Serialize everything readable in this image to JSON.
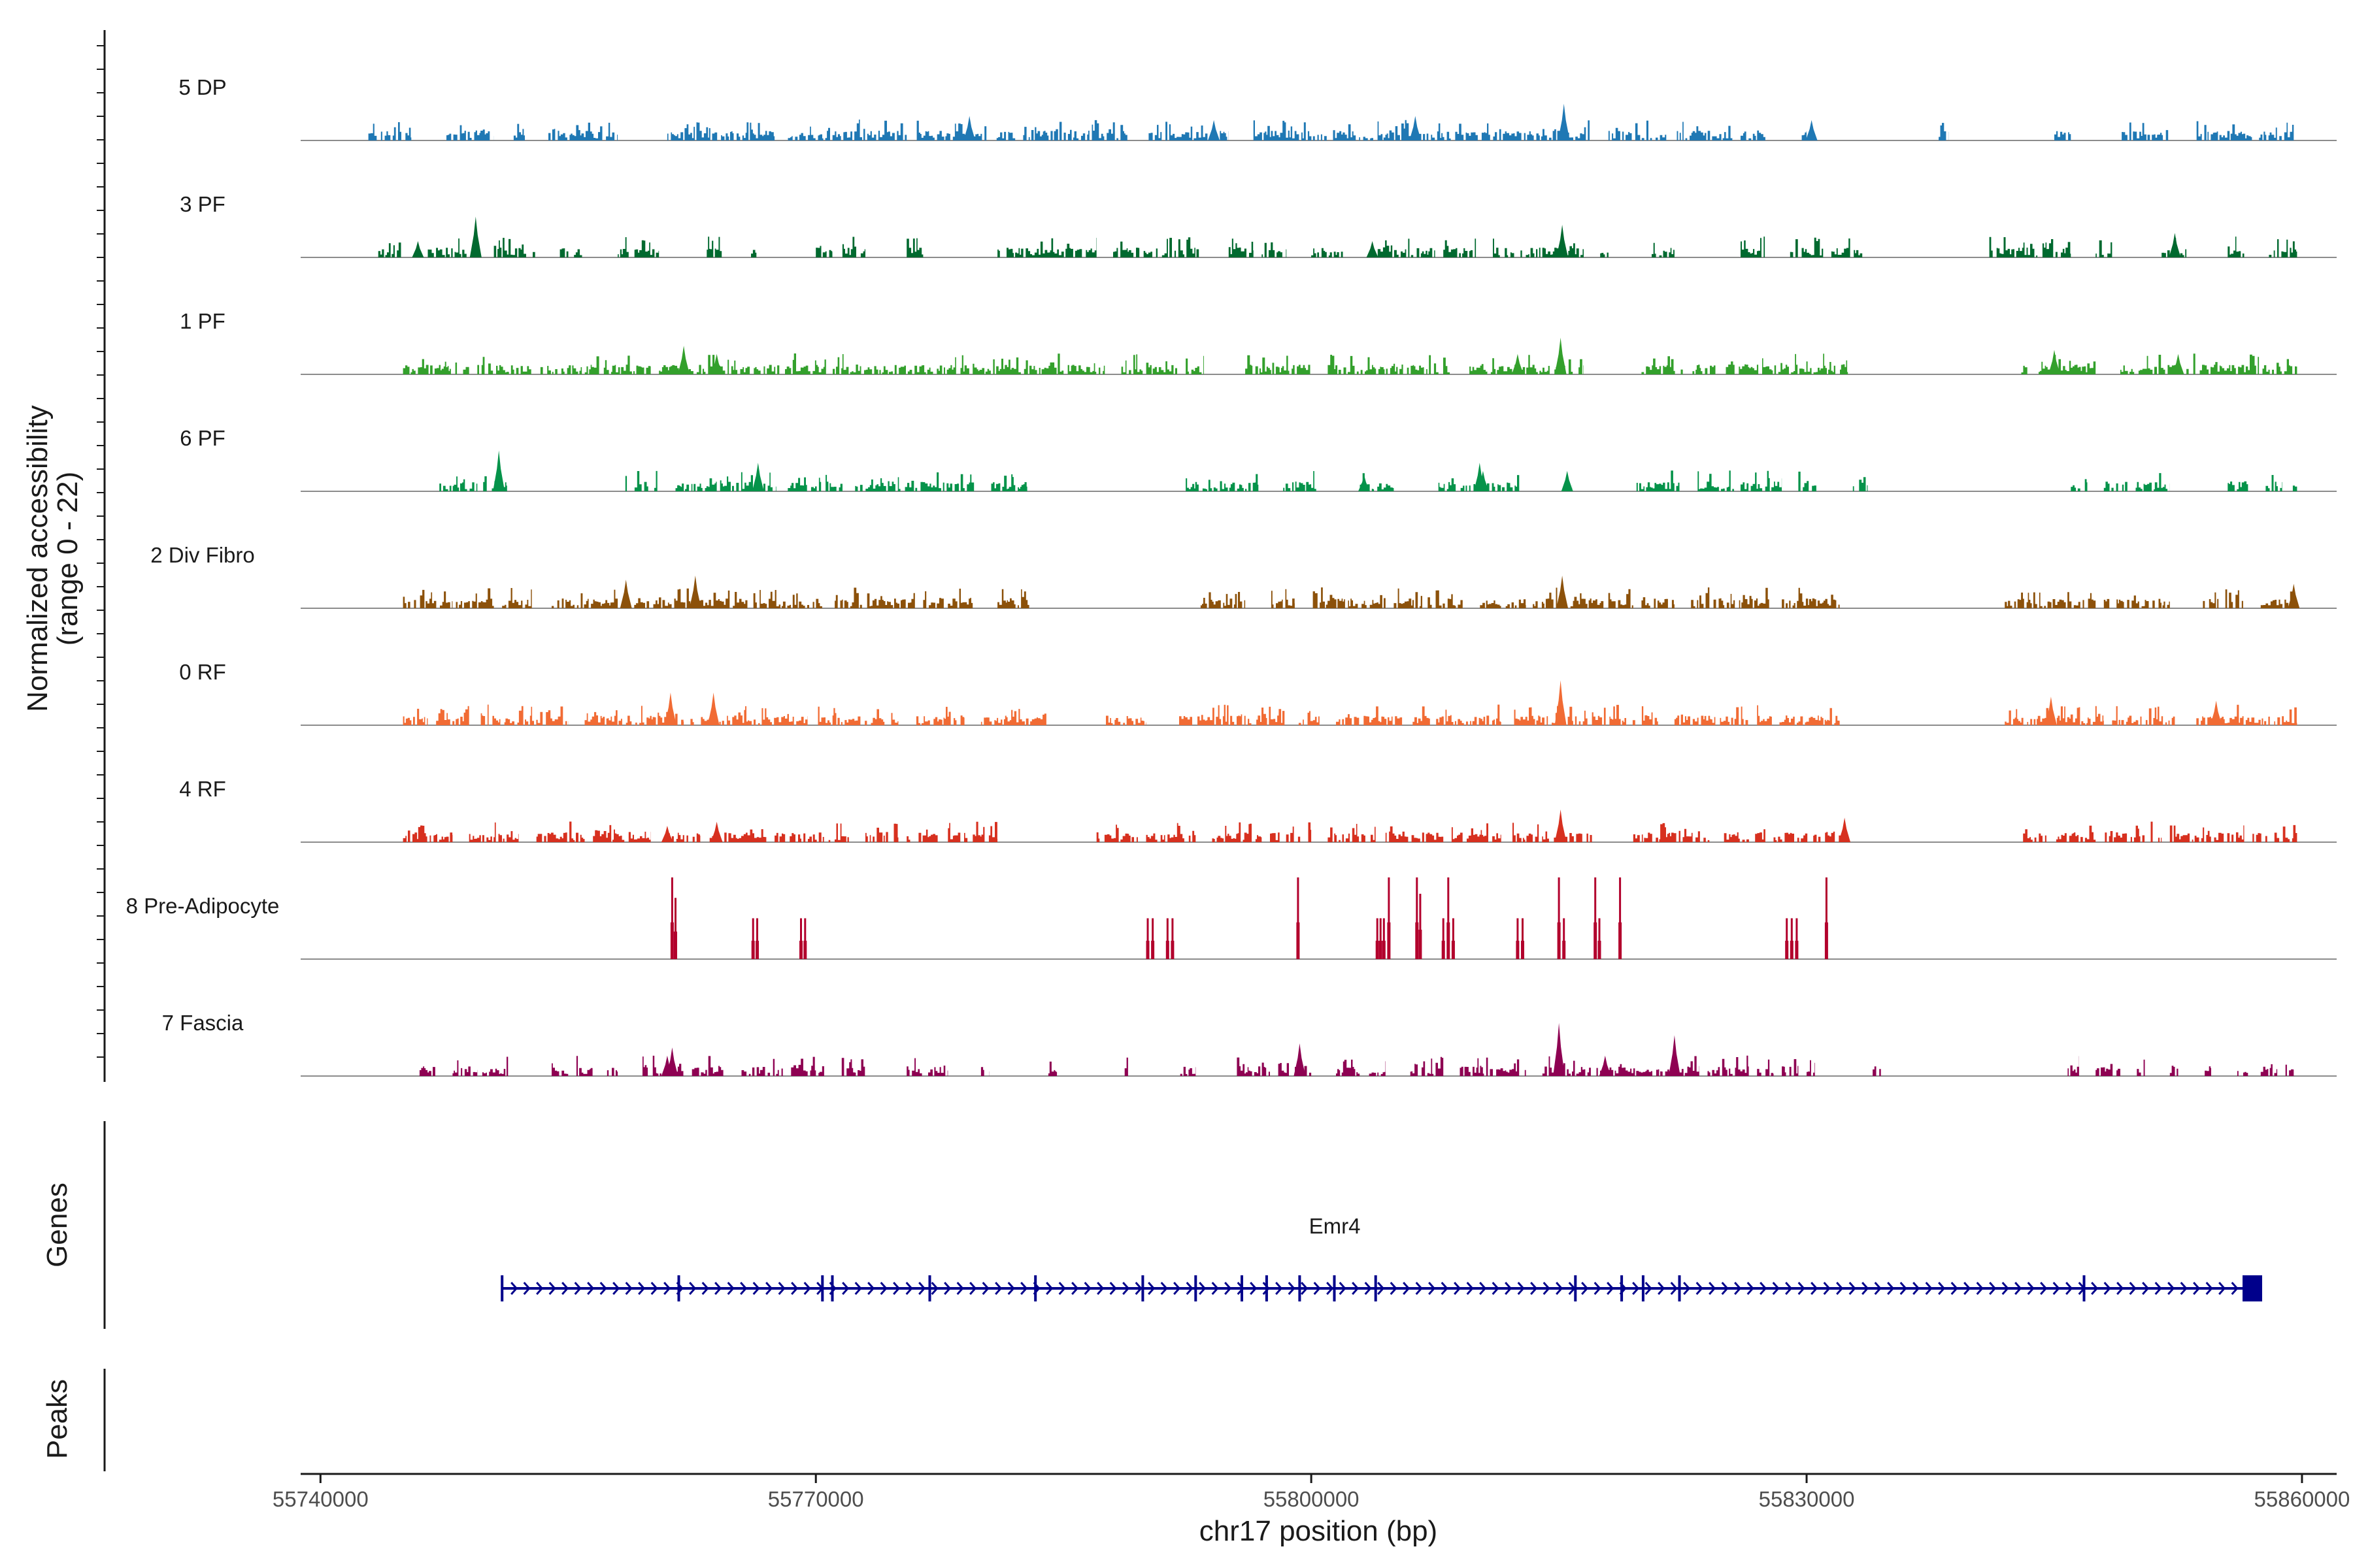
{
  "chart_data": {
    "type": "coverage",
    "ylabel_line1": "Normalized accessibility",
    "ylabel_line2": "(range 0 - 22)",
    "y_range": [
      0,
      22
    ],
    "xlabel": "chr17 position (bp)",
    "x_range": [
      55738800,
      55862100
    ],
    "x_ticks": [
      55740000,
      55770000,
      55800000,
      55830000,
      55860000
    ],
    "tracks": [
      {
        "name": "5 DP",
        "color": "#1f78b4",
        "segments": [
          [
            55742900,
            55745500
          ],
          [
            55747500,
            55750500
          ],
          [
            55751700,
            55752500
          ],
          [
            55753800,
            55758000
          ],
          [
            55761000,
            55767500
          ],
          [
            55768200,
            55775500
          ],
          [
            55776000,
            55789000
          ],
          [
            55790000,
            55795000
          ],
          [
            55796500,
            55817000
          ],
          [
            55818000,
            55821500
          ],
          [
            55822000,
            55825500
          ],
          [
            55826000,
            55827500
          ],
          [
            55829500,
            55830000
          ],
          [
            55838000,
            55838600
          ],
          [
            55845000,
            55846000
          ],
          [
            55849000,
            55852000
          ],
          [
            55853500,
            55859500
          ]
        ],
        "peaks": [
          [
            55806300,
            0.3
          ],
          [
            55815300,
            0.45
          ],
          [
            55830300,
            0.25
          ],
          [
            55779300,
            0.3
          ],
          [
            55794100,
            0.25
          ]
        ]
      },
      {
        "name": "3 PF",
        "color": "#00692f",
        "segments": [
          [
            55743500,
            55745000
          ],
          [
            55746500,
            55749000
          ],
          [
            55750500,
            55753000
          ],
          [
            55754500,
            55756000
          ],
          [
            55758000,
            55760500
          ],
          [
            55763000,
            55764300
          ],
          [
            55766000,
            55766400
          ],
          [
            55770000,
            55771000
          ],
          [
            55771500,
            55773000
          ],
          [
            55775500,
            55776500
          ],
          [
            55781000,
            55787000
          ],
          [
            55788000,
            55793500
          ],
          [
            55795000,
            55796500
          ],
          [
            55797000,
            55798500
          ],
          [
            55800000,
            55802000
          ],
          [
            55803500,
            55807500
          ],
          [
            55808000,
            55810000
          ],
          [
            55811000,
            55816500
          ],
          [
            55817500,
            55818000
          ],
          [
            55820500,
            55822000
          ],
          [
            55826000,
            55827500
          ],
          [
            55829000,
            55831000
          ],
          [
            55831500,
            55833500
          ],
          [
            55841000,
            55846000
          ],
          [
            55847500,
            55848500
          ],
          [
            55851500,
            55853000
          ],
          [
            55855500,
            55856500
          ],
          [
            55858000,
            55859700
          ]
        ],
        "peaks": [
          [
            55749400,
            0.5
          ],
          [
            55745900,
            0.2
          ],
          [
            55815200,
            0.4
          ],
          [
            55803700,
            0.2
          ],
          [
            55852300,
            0.3
          ]
        ]
      },
      {
        "name": "1 PF",
        "color": "#33a02c",
        "segments": [
          [
            55745000,
            55749000
          ],
          [
            55749500,
            55760000
          ],
          [
            55760500,
            55768500
          ],
          [
            55768500,
            55775500
          ],
          [
            55775500,
            55787500
          ],
          [
            55788500,
            55793500
          ],
          [
            55796000,
            55800000
          ],
          [
            55801000,
            55808500
          ],
          [
            55809500,
            55816500
          ],
          [
            55820000,
            55822500
          ],
          [
            55823000,
            55832500
          ],
          [
            55843000,
            55847500
          ],
          [
            55849000,
            55852500
          ],
          [
            55853000,
            55859700
          ]
        ],
        "peaks": [
          [
            55762000,
            0.35
          ],
          [
            55764000,
            0.25
          ],
          [
            55815100,
            0.45
          ],
          [
            55812500,
            0.25
          ],
          [
            55845000,
            0.3
          ],
          [
            55852500,
            0.25
          ]
        ]
      },
      {
        "name": "6 PF",
        "color": "#05934a",
        "segments": [
          [
            55747200,
            55749500
          ],
          [
            55749700,
            55751300
          ],
          [
            55758400,
            55760400
          ],
          [
            55761500,
            55764000
          ],
          [
            55764200,
            55767600
          ],
          [
            55768300,
            55771700
          ],
          [
            55772300,
            55780000
          ],
          [
            55780500,
            55782800
          ],
          [
            55792400,
            55796800
          ],
          [
            55798300,
            55800300
          ],
          [
            55802800,
            55803800
          ],
          [
            55804000,
            55805000
          ],
          [
            55807700,
            55810000
          ],
          [
            55810100,
            55812600
          ],
          [
            55815400,
            55815800
          ],
          [
            55819600,
            55822300
          ],
          [
            55823400,
            55825600
          ],
          [
            55826000,
            55828500
          ],
          [
            55829500,
            55830700
          ],
          [
            55832800,
            55833700
          ],
          [
            55846000,
            55847000
          ],
          [
            55848000,
            55849500
          ],
          [
            55849800,
            55852000
          ],
          [
            55855500,
            55856800
          ],
          [
            55857800,
            55858800
          ],
          [
            55859300,
            55859700
          ]
        ],
        "peaks": [
          [
            55750800,
            0.5
          ],
          [
            55766500,
            0.35
          ],
          [
            55810200,
            0.35
          ],
          [
            55803200,
            0.2
          ],
          [
            55810400,
            0.25
          ],
          [
            55815500,
            0.25
          ]
        ]
      },
      {
        "name": "2 Div Fibro",
        "color": "#8c510a",
        "segments": [
          [
            55745000,
            55748000
          ],
          [
            55748200,
            55750500
          ],
          [
            55751000,
            55752800
          ],
          [
            55754000,
            55758000
          ],
          [
            55759000,
            55770500
          ],
          [
            55771000,
            55776000
          ],
          [
            55776500,
            55779500
          ],
          [
            55781000,
            55783000
          ],
          [
            55793300,
            55796000
          ],
          [
            55797500,
            55799000
          ],
          [
            55800000,
            55804500
          ],
          [
            55805000,
            55809500
          ],
          [
            55810000,
            55813000
          ],
          [
            55813300,
            55815500
          ],
          [
            55815700,
            55819500
          ],
          [
            55820000,
            55822000
          ],
          [
            55823000,
            55828000
          ],
          [
            55828500,
            55832000
          ],
          [
            55842000,
            55847500
          ],
          [
            55848000,
            55852000
          ],
          [
            55854000,
            55856500
          ],
          [
            55857500,
            55859700
          ]
        ],
        "peaks": [
          [
            55762700,
            0.4
          ],
          [
            55758500,
            0.35
          ],
          [
            55815200,
            0.4
          ],
          [
            55859500,
            0.3
          ]
        ]
      },
      {
        "name": "0 RF",
        "color": "#f16b34",
        "segments": [
          [
            55745000,
            55746500
          ],
          [
            55747000,
            55749000
          ],
          [
            55749500,
            55755000
          ],
          [
            55756000,
            55762000
          ],
          [
            55762300,
            55769500
          ],
          [
            55770000,
            55775000
          ],
          [
            55776000,
            55779000
          ],
          [
            55780000,
            55784000
          ],
          [
            55787500,
            55790000
          ],
          [
            55792000,
            55798500
          ],
          [
            55799000,
            55800500
          ],
          [
            55801500,
            55805500
          ],
          [
            55806000,
            55811500
          ],
          [
            55812000,
            55816800
          ],
          [
            55817000,
            55821000
          ],
          [
            55822000,
            55826500
          ],
          [
            55827000,
            55832000
          ],
          [
            55842000,
            55848000
          ],
          [
            55848500,
            55852300
          ],
          [
            55853500,
            55859700
          ]
        ],
        "peaks": [
          [
            55761200,
            0.4
          ],
          [
            55763800,
            0.4
          ],
          [
            55815100,
            0.55
          ],
          [
            55844800,
            0.35
          ],
          [
            55854800,
            0.3
          ]
        ]
      },
      {
        "name": "4 RF",
        "color": "#d7301f",
        "segments": [
          [
            55745000,
            55748000
          ],
          [
            55749000,
            55752000
          ],
          [
            55753000,
            55756000
          ],
          [
            55756500,
            55760000
          ],
          [
            55761000,
            55763000
          ],
          [
            55763500,
            55767000
          ],
          [
            55767500,
            55772000
          ],
          [
            55773000,
            55775000
          ],
          [
            55775500,
            55777500
          ],
          [
            55778000,
            55781000
          ],
          [
            55787000,
            55789500
          ],
          [
            55790000,
            55793000
          ],
          [
            55794000,
            55797000
          ],
          [
            55797500,
            55800000
          ],
          [
            55801000,
            55804000
          ],
          [
            55804500,
            55808000
          ],
          [
            55808500,
            55811500
          ],
          [
            55812000,
            55815000
          ],
          [
            55815200,
            55817000
          ],
          [
            55819500,
            55824500
          ],
          [
            55825000,
            55827500
          ],
          [
            55828000,
            55832500
          ],
          [
            55843000,
            55847500
          ],
          [
            55848000,
            55851500
          ],
          [
            55852000,
            55856500
          ],
          [
            55857000,
            55859700
          ]
        ],
        "peaks": [
          [
            55815100,
            0.4
          ],
          [
            55761000,
            0.2
          ],
          [
            55764000,
            0.25
          ],
          [
            55832300,
            0.3
          ]
        ]
      },
      {
        "name": "8 Pre-Adipocyte",
        "color": "#b2002c",
        "spikes": [
          [
            55761300,
            1.0
          ],
          [
            55761500,
            0.75
          ],
          [
            55766200,
            0.5
          ],
          [
            55766450,
            0.5
          ],
          [
            55769100,
            0.5
          ],
          [
            55769350,
            0.5
          ],
          [
            55790100,
            0.5
          ],
          [
            55790400,
            0.5
          ],
          [
            55791300,
            0.5
          ],
          [
            55791600,
            0.5
          ],
          [
            55799200,
            1.0
          ],
          [
            55804000,
            0.5
          ],
          [
            55804200,
            0.5
          ],
          [
            55804400,
            0.5
          ],
          [
            55804700,
            1.0
          ],
          [
            55806400,
            1.0
          ],
          [
            55806600,
            0.8
          ],
          [
            55808000,
            0.5
          ],
          [
            55808300,
            1.0
          ],
          [
            55808600,
            0.5
          ],
          [
            55812500,
            0.5
          ],
          [
            55812800,
            0.5
          ],
          [
            55815000,
            1.0
          ],
          [
            55815300,
            0.5
          ],
          [
            55817200,
            1.0
          ],
          [
            55817450,
            0.5
          ],
          [
            55818700,
            1.0
          ],
          [
            55828800,
            0.5
          ],
          [
            55829100,
            0.5
          ],
          [
            55829400,
            0.5
          ],
          [
            55831200,
            1.0
          ]
        ]
      },
      {
        "name": "7 Fascia",
        "color": "#8e0152",
        "segments": [
          [
            55746000,
            55747200
          ],
          [
            55748000,
            55749500
          ],
          [
            55749800,
            55751500
          ],
          [
            55754000,
            55755000
          ],
          [
            55755500,
            55756500
          ],
          [
            55757200,
            55758000
          ],
          [
            55759500,
            55762000
          ],
          [
            55762500,
            55764500
          ],
          [
            55765500,
            55768000
          ],
          [
            55768500,
            55770500
          ],
          [
            55771500,
            55773000
          ],
          [
            55775500,
            55776500
          ],
          [
            55776800,
            55778000
          ],
          [
            55780000,
            55780500
          ],
          [
            55784000,
            55784600
          ],
          [
            55788700,
            55789200
          ],
          [
            55792000,
            55793000
          ],
          [
            55795500,
            55797500
          ],
          [
            55798000,
            55800000
          ],
          [
            55801500,
            55803000
          ],
          [
            55803500,
            55804500
          ],
          [
            55806000,
            55808000
          ],
          [
            55809000,
            55811000
          ],
          [
            55811200,
            55813000
          ],
          [
            55814000,
            55816500
          ],
          [
            55816500,
            55821000
          ],
          [
            55821000,
            55823500
          ],
          [
            55824000,
            55826500
          ],
          [
            55827000,
            55828000
          ],
          [
            55828500,
            55829500
          ],
          [
            55830000,
            55830500
          ],
          [
            55834000,
            55834500
          ],
          [
            55845500,
            55846500
          ],
          [
            55847500,
            55849000
          ],
          [
            55850000,
            55850500
          ],
          [
            55852000,
            55852500
          ],
          [
            55854000,
            55854500
          ],
          [
            55856000,
            55856800
          ],
          [
            55857500,
            55858500
          ],
          [
            55859000,
            55859500
          ]
        ],
        "peaks": [
          [
            55815000,
            0.65
          ],
          [
            55822000,
            0.5
          ],
          [
            55761300,
            0.35
          ],
          [
            55799300,
            0.4
          ],
          [
            55817800,
            0.25
          ],
          [
            55761000,
            0.25
          ]
        ]
      }
    ],
    "gene_panel_title": "Genes",
    "peaks_panel_title": "Peaks",
    "gene": {
      "name": "Emr4",
      "start": 55751000,
      "end": 55857000,
      "strand": "+",
      "color": "#00008b",
      "exons": [
        55751000,
        55761700,
        55770400,
        55771000,
        55776900,
        55783300,
        55789800,
        55793000,
        55795800,
        55797300,
        55799300,
        55801400,
        55803900,
        55816000,
        55818800,
        55820100,
        55822300,
        55846800,
        55856400,
        55857000
      ]
    }
  }
}
